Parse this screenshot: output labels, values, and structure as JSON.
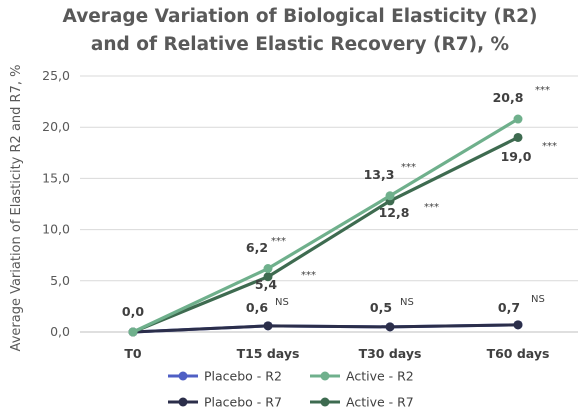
{
  "chart_data": {
    "type": "line",
    "title_line1": "Average Variation of Biological Elasticity (R2)",
    "title_line2": "and of Relative Elastic Recovery (R7), %",
    "ylabel": "Average Variation of Elasticity R2 and R7, %",
    "xlabel": "",
    "categories": [
      "T0",
      "T15 days",
      "T30 days",
      "T60 days"
    ],
    "ylim": [
      0,
      25
    ],
    "yticks": [
      "0,0",
      "5,0",
      "10,0",
      "15,0",
      "20,0",
      "25,0"
    ],
    "grid": true,
    "legend_position": "bottom",
    "series": [
      {
        "name": "Placebo - R2",
        "color": "#4f5fc4",
        "values": [
          0.0,
          0.6,
          0.5,
          0.7
        ]
      },
      {
        "name": "Placebo - R7",
        "color": "#2b2e4a",
        "values": [
          0.0,
          0.6,
          0.5,
          0.7
        ]
      },
      {
        "name": "Active - R2",
        "color": "#6fb08c",
        "values": [
          0.0,
          6.2,
          13.3,
          20.8
        ]
      },
      {
        "name": "Active - R7",
        "color": "#3e6b50",
        "values": [
          0.0,
          5.4,
          12.8,
          19.0
        ]
      }
    ],
    "annotations": [
      {
        "text": "0,0",
        "sig": ""
      },
      {
        "text": "0,6",
        "sig": "NS"
      },
      {
        "text": "0,5",
        "sig": "NS"
      },
      {
        "text": "0,7",
        "sig": "NS"
      },
      {
        "text": "6,2",
        "sig": "***"
      },
      {
        "text": "5,4",
        "sig": "***"
      },
      {
        "text": "13,3",
        "sig": "***"
      },
      {
        "text": "12,8",
        "sig": "***"
      },
      {
        "text": "20,8",
        "sig": "***"
      },
      {
        "text": "19,0",
        "sig": "***"
      }
    ]
  }
}
